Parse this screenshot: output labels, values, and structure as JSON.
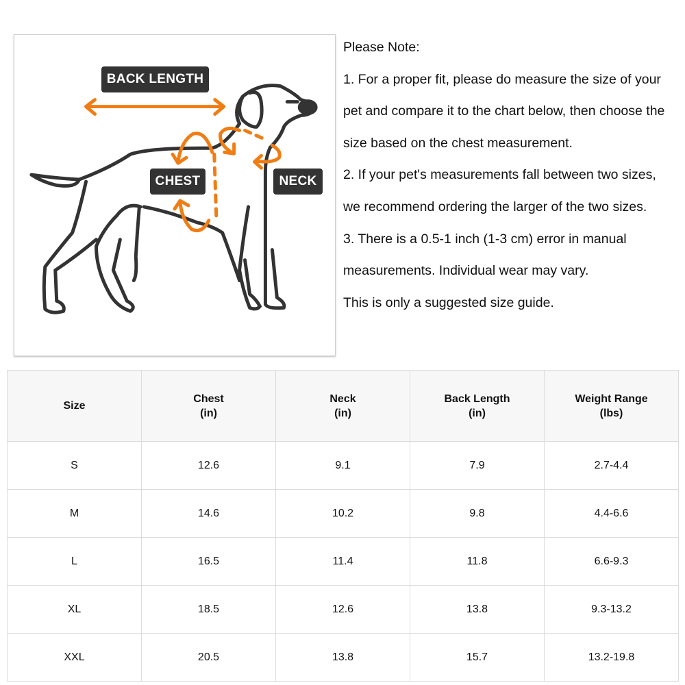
{
  "figure": {
    "labels": {
      "back_length": "BACK LENGTH",
      "chest": "CHEST",
      "neck": "NECK"
    },
    "colors": {
      "accent": "#f07d14",
      "outline": "#333333"
    }
  },
  "notes": [
    "Please Note:",
    "1. For a proper fit, please do measure the size of your",
    "pet and compare it to the chart below, then choose the",
    "size based on the chest measurement.",
    "2. If your pet's measurements fall between two sizes,",
    "we recommend ordering the larger of the two sizes.",
    "3. There is a 0.5-1 inch (1-3 cm) error in manual",
    "measurements. Individual wear may vary.",
    "This is only a suggested size guide."
  ],
  "table": {
    "headers": [
      {
        "line1": "Size",
        "line2": ""
      },
      {
        "line1": "Chest",
        "line2": "(in)"
      },
      {
        "line1": "Neck",
        "line2": "(in)"
      },
      {
        "line1": "Back Length",
        "line2": "(in)"
      },
      {
        "line1": "Weight Range",
        "line2": "(lbs)"
      }
    ],
    "rows": [
      [
        "S",
        "12.6",
        "9.1",
        "7.9",
        "2.7-4.4"
      ],
      [
        "M",
        "14.6",
        "10.2",
        "9.8",
        "4.4-6.6"
      ],
      [
        "L",
        "16.5",
        "11.4",
        "11.8",
        "6.6-9.3"
      ],
      [
        "XL",
        "18.5",
        "12.6",
        "13.8",
        "9.3-13.2"
      ],
      [
        "XXL",
        "20.5",
        "13.8",
        "15.7",
        "13.2-19.8"
      ]
    ]
  }
}
